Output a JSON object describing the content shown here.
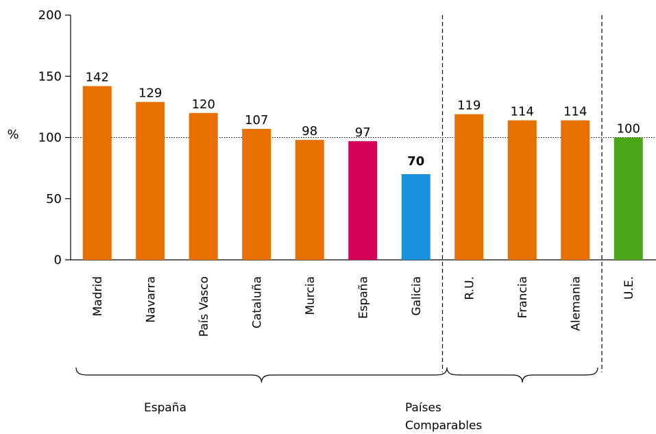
{
  "chart_data": {
    "type": "bar",
    "ylabel": "%",
    "ylim": [
      0,
      200
    ],
    "yticks": [
      "0",
      "50",
      "100",
      "150",
      "200"
    ],
    "reference_line": 100,
    "categories": [
      "Madrid",
      "Navarra",
      "País Vasco",
      "Cataluña",
      "Murcia",
      "España",
      "Galicia",
      "R.U.",
      "Francia",
      "Alemania",
      "U.E."
    ],
    "values": [
      142,
      129,
      120,
      107,
      98,
      97,
      70,
      119,
      114,
      114,
      100
    ],
    "value_labels": [
      "142",
      "129",
      "120",
      "107",
      "98",
      "97",
      "70",
      "119",
      "114",
      "114",
      "100"
    ],
    "bold_value_labels": [
      "70"
    ],
    "bar_colors": [
      "#e87000",
      "#e87000",
      "#e87000",
      "#e87000",
      "#e87000",
      "#d4005a",
      "#1a8fdc",
      "#e87000",
      "#e87000",
      "#e87000",
      "#4ea719"
    ],
    "groups": [
      {
        "label": "España",
        "categories": [
          "Madrid",
          "Navarra",
          "País Vasco",
          "Cataluña",
          "Murcia",
          "España",
          "Galicia"
        ]
      },
      {
        "label_lines": [
          "Países",
          "Comparables"
        ],
        "categories": [
          "R.U.",
          "Francia",
          "Alemania"
        ]
      }
    ],
    "grid": false
  }
}
